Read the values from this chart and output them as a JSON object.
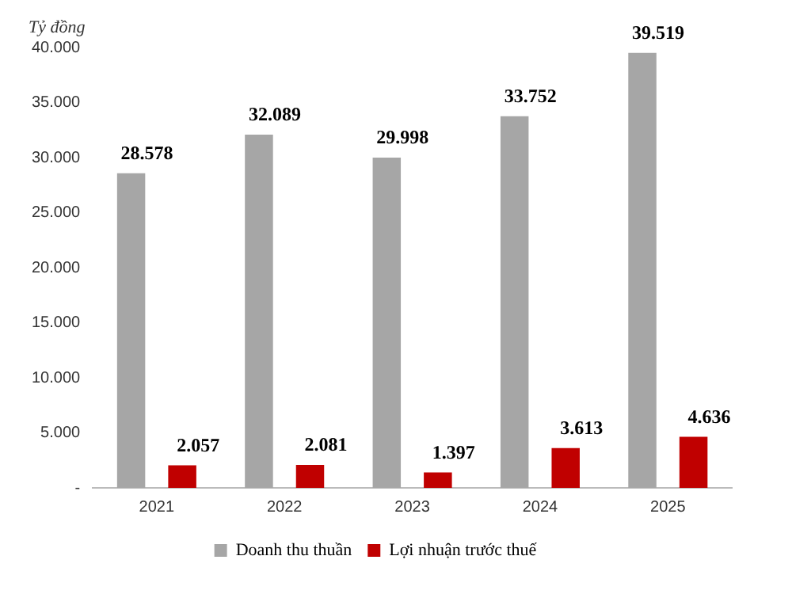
{
  "chart_data": {
    "type": "bar",
    "ylabel": "Tỷ đồng",
    "categories": [
      "2021",
      "2022",
      "2023",
      "2024",
      "2025"
    ],
    "series": [
      {
        "name": "Doanh thu thuần",
        "color": "#a6a6a6",
        "values": [
          28578,
          32089,
          29998,
          33752,
          39519
        ],
        "value_labels": [
          "28.578",
          "32.089",
          "29.998",
          "33.752",
          "39.519"
        ]
      },
      {
        "name": "Lợi nhuận trước thuế",
        "color": "#c00000",
        "values": [
          2057,
          2081,
          1397,
          3613,
          4636
        ],
        "value_labels": [
          "2.057",
          "2.081",
          "1.397",
          "3.613",
          "4.636"
        ]
      }
    ],
    "ylim": [
      0,
      40000
    ],
    "yticks": [
      {
        "value": 0,
        "label": "-"
      },
      {
        "value": 5000,
        "label": "5.000"
      },
      {
        "value": 10000,
        "label": "10.000"
      },
      {
        "value": 15000,
        "label": "15.000"
      },
      {
        "value": 20000,
        "label": "20.000"
      },
      {
        "value": 25000,
        "label": "25.000"
      },
      {
        "value": 30000,
        "label": "30.000"
      },
      {
        "value": 35000,
        "label": "35.000"
      },
      {
        "value": 40000,
        "label": "40.000"
      }
    ],
    "grid": false,
    "legend": "bottom"
  }
}
